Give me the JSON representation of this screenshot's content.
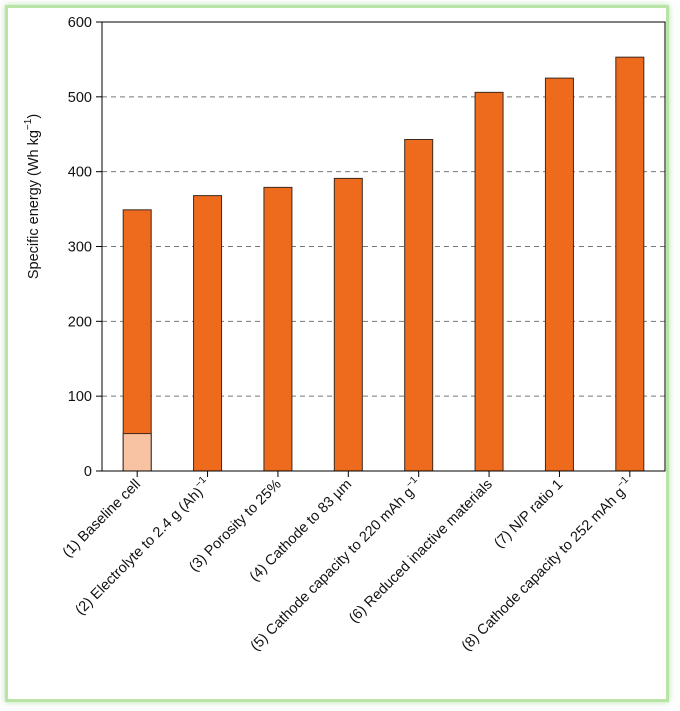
{
  "chart_data": {
    "type": "bar",
    "categories": [
      {
        "text": "(1) Baseline cell",
        "sup": ""
      },
      {
        "text": "(2) Electrolyte to 2.4 g (Ah)",
        "sup": "−1"
      },
      {
        "text": "(3) Porosity to 25%",
        "sup": ""
      },
      {
        "text": "(4) Cathode to 83 µm",
        "sup": ""
      },
      {
        "text": "(5) Cathode capacity to 220 mAh g",
        "sup": "−1"
      },
      {
        "text": "(6) Reduced inactive materials",
        "sup": ""
      },
      {
        "text": "(7) N/P ratio 1",
        "sup": ""
      },
      {
        "text": "(8) Cathode capacity to 252 mAh g",
        "sup": "−1"
      }
    ],
    "values": [
      349,
      368,
      379,
      391,
      443,
      506,
      525,
      553
    ],
    "baseline_segment_value": 50,
    "ylabel": {
      "main": "Specific energy (Wh kg",
      "sup": "−1",
      "close": ")"
    },
    "ylim": [
      0,
      600
    ],
    "yticks": [
      0,
      100,
      200,
      300,
      400,
      500,
      600
    ],
    "grid": "horizontal dashed at 100-unit ticks",
    "colors": {
      "bar": "#ee6a1c",
      "segment": "#f7c3a2",
      "edge": "#3b2a20"
    }
  }
}
